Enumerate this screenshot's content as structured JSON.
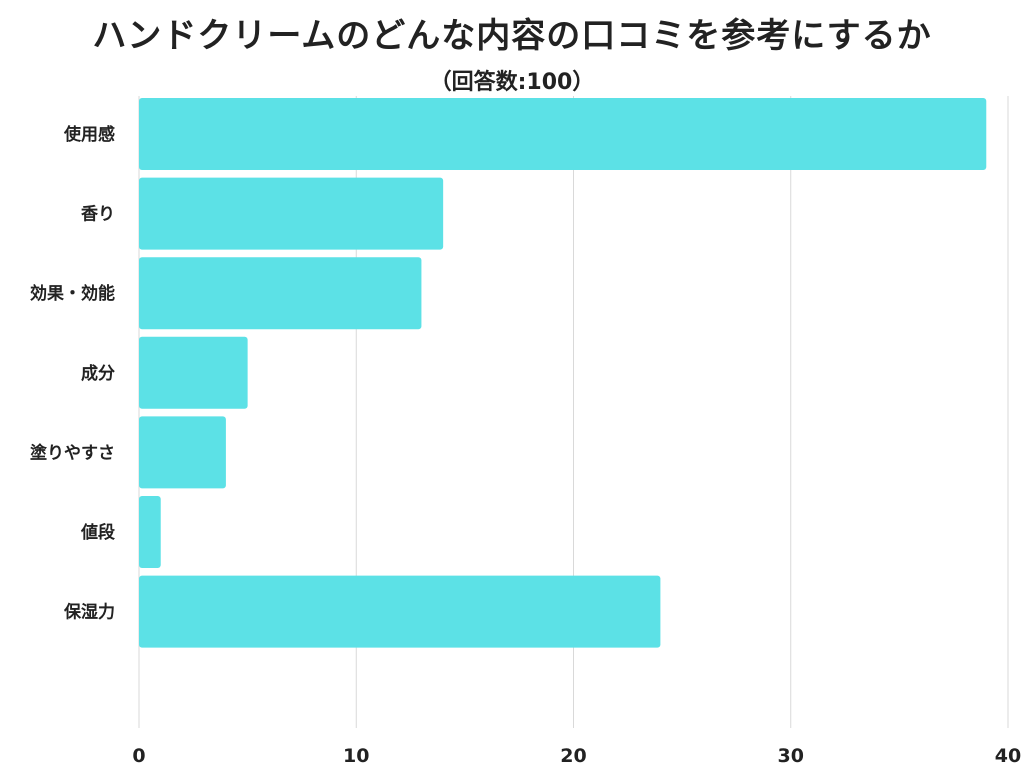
{
  "chart_data": {
    "type": "bar",
    "orientation": "horizontal",
    "title": "ハンドクリームのどんな内容の口コミを参考にするか",
    "subtitle": "（回答数:100）",
    "categories": [
      "使用感",
      "香り",
      "効果・効能",
      "成分",
      "塗りやすさ",
      "値段",
      "保湿力"
    ],
    "values": [
      39,
      14,
      13,
      5,
      4,
      1,
      24
    ],
    "xlim": [
      0,
      40
    ],
    "xticks": [
      0,
      10,
      20,
      30,
      40
    ],
    "grid": "vertical",
    "legend": "none",
    "bar_color": "#5ce1e6",
    "grid_color": "#d9d9d9"
  }
}
